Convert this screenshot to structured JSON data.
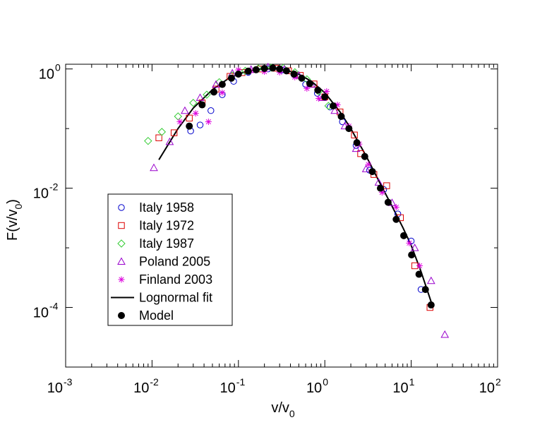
{
  "chart_data": {
    "type": "scatter",
    "title": "",
    "xlabel": {
      "base": "v/v",
      "sub": "0"
    },
    "ylabel": {
      "base": "F(v/v",
      "sub": "0",
      "close": ")"
    },
    "x_scale": "log",
    "y_scale": "log",
    "xlim": [
      0.001,
      100
    ],
    "ylim": [
      1e-05,
      1.2
    ],
    "x_ticks": [
      {
        "value": 0.001,
        "base": "10",
        "exp": "-3"
      },
      {
        "value": 0.01,
        "base": "10",
        "exp": "-2"
      },
      {
        "value": 0.1,
        "base": "10",
        "exp": "-1"
      },
      {
        "value": 1,
        "base": "10",
        "exp": "0"
      },
      {
        "value": 10,
        "base": "10",
        "exp": "1"
      },
      {
        "value": 100,
        "base": "10",
        "exp": "2"
      }
    ],
    "y_ticks": [
      {
        "value": 0.0001,
        "base": "10",
        "exp": "-4"
      },
      {
        "value": 0.01,
        "base": "10",
        "exp": "-2"
      },
      {
        "value": 1,
        "base": "10",
        "exp": "0"
      }
    ],
    "grid": false,
    "legend_position": "lower-left",
    "series": [
      {
        "name": "Italy 1958",
        "marker": "circle",
        "color": "#0000cc",
        "points": [
          [
            0.028,
            0.091
          ],
          [
            0.036,
            0.115
          ],
          [
            0.048,
            0.2
          ],
          [
            0.065,
            0.37
          ],
          [
            0.088,
            0.62
          ],
          [
            0.13,
            0.88
          ],
          [
            0.22,
            1.0
          ],
          [
            0.32,
            0.96
          ],
          [
            0.45,
            0.79
          ],
          [
            0.6,
            0.55
          ],
          [
            0.82,
            0.39
          ],
          [
            1.15,
            0.23
          ],
          [
            1.6,
            0.13
          ],
          [
            2.3,
            0.052
          ],
          [
            3.3,
            0.02
          ],
          [
            4.8,
            0.0095
          ],
          [
            7.0,
            0.0037
          ],
          [
            10.0,
            0.0013
          ],
          [
            13.0,
            0.0002
          ]
        ]
      },
      {
        "name": "Italy 1972",
        "marker": "square",
        "color": "#dd0000",
        "points": [
          [
            0.012,
            0.07
          ],
          [
            0.018,
            0.085
          ],
          [
            0.027,
            0.15
          ],
          [
            0.038,
            0.27
          ],
          [
            0.055,
            0.46
          ],
          [
            0.08,
            0.75
          ],
          [
            0.11,
            0.87
          ],
          [
            0.18,
            1.0
          ],
          [
            0.27,
            1.03
          ],
          [
            0.38,
            0.93
          ],
          [
            0.52,
            0.78
          ],
          [
            0.75,
            0.56
          ],
          [
            1.0,
            0.34
          ],
          [
            1.5,
            0.19
          ],
          [
            2.2,
            0.078
          ],
          [
            2.6,
            0.038
          ],
          [
            3.7,
            0.017
          ],
          [
            5.2,
            0.011
          ],
          [
            7.5,
            0.0032
          ],
          [
            11.0,
            0.0005
          ],
          [
            16.5,
            0.0001
          ]
        ]
      },
      {
        "name": "Italy 1987",
        "marker": "diamond",
        "color": "#33cc33",
        "points": [
          [
            0.009,
            0.062
          ],
          [
            0.013,
            0.088
          ],
          [
            0.02,
            0.16
          ],
          [
            0.03,
            0.27
          ],
          [
            0.043,
            0.37
          ],
          [
            0.06,
            0.6
          ],
          [
            0.085,
            0.78
          ],
          [
            0.12,
            0.93
          ],
          [
            0.17,
            1.02
          ],
          [
            0.24,
            1.05
          ],
          [
            0.33,
            1.04
          ],
          [
            0.45,
            0.88
          ],
          [
            0.62,
            0.67
          ],
          [
            0.85,
            0.42
          ],
          [
            1.1,
            0.24
          ]
        ]
      },
      {
        "name": "Poland 2005",
        "marker": "triangle",
        "color": "#9900cc",
        "points": [
          [
            0.0105,
            0.022
          ],
          [
            0.016,
            0.06
          ],
          [
            0.024,
            0.2
          ],
          [
            0.036,
            0.33
          ],
          [
            0.055,
            0.55
          ],
          [
            0.085,
            0.85
          ],
          [
            0.14,
            0.98
          ],
          [
            0.22,
            1.08
          ],
          [
            0.34,
            0.99
          ],
          [
            0.5,
            0.78
          ],
          [
            0.7,
            0.55
          ],
          [
            0.95,
            0.33
          ],
          [
            1.3,
            0.2
          ],
          [
            1.7,
            0.11
          ],
          [
            2.3,
            0.046
          ],
          [
            3.0,
            0.021
          ],
          [
            4.2,
            0.0125
          ],
          [
            6.0,
            0.0057
          ],
          [
            11.0,
            0.001
          ],
          [
            17.0,
            0.00028
          ],
          [
            24.5,
            3.5e-05
          ]
        ]
      },
      {
        "name": "Finland 2003",
        "marker": "star",
        "color": "#dd00dd",
        "points": [
          [
            0.021,
            0.13
          ],
          [
            0.032,
            0.18
          ],
          [
            0.045,
            0.13
          ],
          [
            0.065,
            0.4
          ],
          [
            0.1,
            0.96
          ],
          [
            0.14,
            0.93
          ],
          [
            0.2,
            0.9
          ],
          [
            0.3,
            0.88
          ],
          [
            0.45,
            0.73
          ],
          [
            0.62,
            0.47
          ],
          [
            0.85,
            0.32
          ],
          [
            1.05,
            0.42
          ],
          [
            1.4,
            0.25
          ],
          [
            1.9,
            0.11
          ],
          [
            2.5,
            0.055
          ],
          [
            3.2,
            0.025
          ],
          [
            4.6,
            0.0085
          ],
          [
            6.7,
            0.0048
          ],
          [
            9.5,
            0.0012
          ],
          [
            12.5,
            0.0005
          ]
        ]
      },
      {
        "name": "Lognormal fit",
        "marker": "line",
        "color": "#000000",
        "points": [
          [
            0.012,
            0.03
          ],
          [
            0.02,
            0.1
          ],
          [
            0.03,
            0.22
          ],
          [
            0.05,
            0.45
          ],
          [
            0.08,
            0.72
          ],
          [
            0.12,
            0.9
          ],
          [
            0.18,
            1.0
          ],
          [
            0.25,
            1.02
          ],
          [
            0.35,
            0.96
          ],
          [
            0.5,
            0.82
          ],
          [
            0.7,
            0.62
          ],
          [
            1.0,
            0.4
          ],
          [
            1.5,
            0.19
          ],
          [
            2.0,
            0.1
          ],
          [
            3.0,
            0.035
          ],
          [
            4.5,
            0.011
          ],
          [
            6.0,
            0.005
          ],
          [
            8.0,
            0.0022
          ],
          [
            10.0,
            0.0011
          ],
          [
            13.0,
            0.0004
          ],
          [
            17.5,
            0.00011
          ]
        ]
      },
      {
        "name": "Model",
        "marker": "filled-circle",
        "color": "#000000",
        "points": [
          [
            0.027,
            0.11
          ],
          [
            0.038,
            0.25
          ],
          [
            0.052,
            0.41
          ],
          [
            0.065,
            0.55
          ],
          [
            0.083,
            0.7
          ],
          [
            0.1,
            0.82
          ],
          [
            0.13,
            0.92
          ],
          [
            0.16,
            0.97
          ],
          [
            0.2,
            1.02
          ],
          [
            0.25,
            1.04
          ],
          [
            0.3,
            1.0
          ],
          [
            0.36,
            0.93
          ],
          [
            0.44,
            0.82
          ],
          [
            0.54,
            0.7
          ],
          [
            0.67,
            0.57
          ],
          [
            0.83,
            0.44
          ],
          [
            1.0,
            0.34
          ],
          [
            1.25,
            0.24
          ],
          [
            1.55,
            0.16
          ],
          [
            1.9,
            0.1
          ],
          [
            2.35,
            0.058
          ],
          [
            2.9,
            0.034
          ],
          [
            3.55,
            0.019
          ],
          [
            4.4,
            0.01
          ],
          [
            5.4,
            0.0058
          ],
          [
            6.7,
            0.003
          ],
          [
            8.2,
            0.0016
          ],
          [
            10.1,
            0.00076
          ],
          [
            12.3,
            0.00036
          ],
          [
            14.6,
            0.0002
          ],
          [
            17.0,
            0.00011
          ]
        ]
      }
    ]
  }
}
